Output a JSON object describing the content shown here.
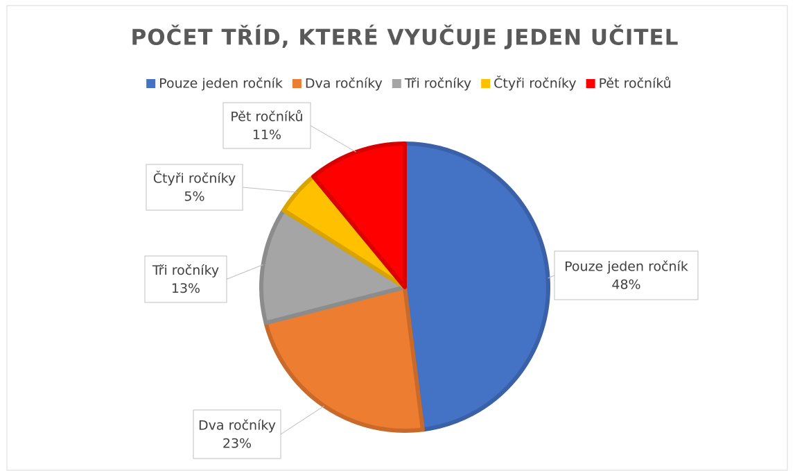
{
  "chart_data": {
    "type": "pie",
    "title": "POČET TŘÍD, KTERÉ VYUČUJE JEDEN UČITEL",
    "categories": [
      "Pouze jeden ročník",
      "Dva ročníky",
      "Tři ročníky",
      "Čtyři ročníky",
      "Pět ročníků"
    ],
    "values": [
      48,
      23,
      13,
      5,
      11
    ],
    "value_labels": [
      "48%",
      "23%",
      "13%",
      "5%",
      "11%"
    ],
    "colors": [
      "#4472c4",
      "#ed7d31",
      "#a5a5a5",
      "#ffc000",
      "#ff0000"
    ],
    "legend": "top"
  }
}
